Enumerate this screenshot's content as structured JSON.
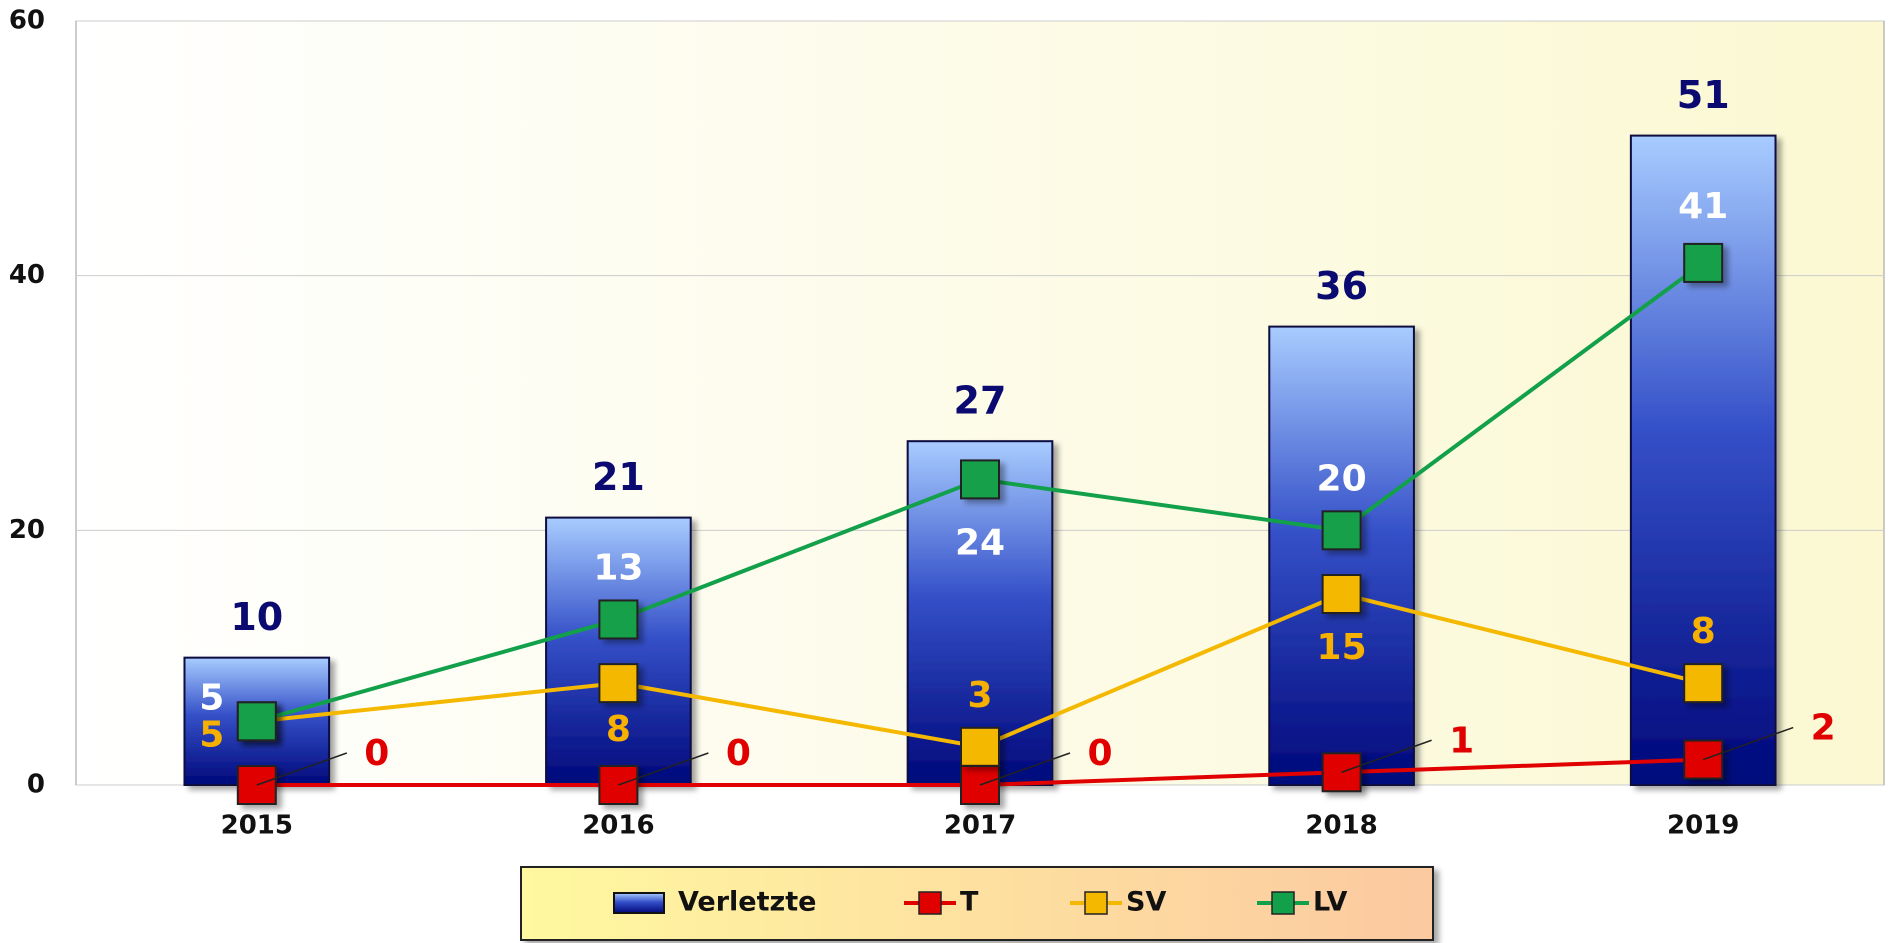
{
  "chart_data": {
    "type": "bar",
    "categories": [
      "2015",
      "2016",
      "2017",
      "2018",
      "2019"
    ],
    "series": [
      {
        "name": "Verletzte",
        "type": "bar",
        "color": "#1a2fa8",
        "values": [
          10,
          21,
          27,
          36,
          51
        ]
      },
      {
        "name": "T",
        "type": "line",
        "color": "#e00000",
        "values": [
          0,
          0,
          0,
          1,
          2
        ]
      },
      {
        "name": "SV",
        "type": "line",
        "color": "#f5b800",
        "values": [
          5,
          8,
          3,
          15,
          8
        ]
      },
      {
        "name": "LV",
        "type": "line",
        "color": "#12a04a",
        "values": [
          5,
          13,
          24,
          20,
          41
        ]
      }
    ],
    "ylim": [
      0,
      60
    ],
    "yticks": [
      0,
      20,
      40,
      60
    ],
    "grid": true,
    "legend": "bottom"
  }
}
